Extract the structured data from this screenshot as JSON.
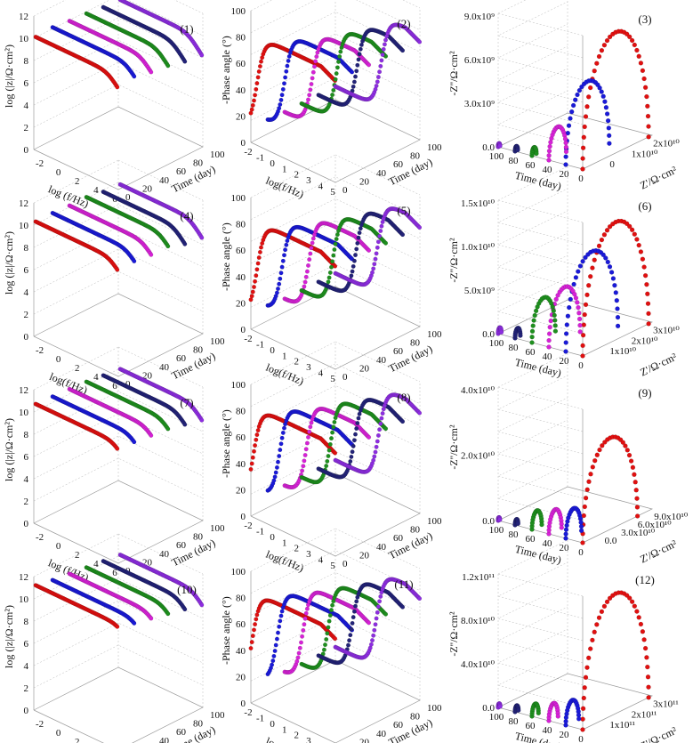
{
  "colors": {
    "day0": "#e01010",
    "day20": "#1a1ad8",
    "day40": "#d622d6",
    "day60": "#1e8f1e",
    "day80": "#232378",
    "day100": "#8d2de0"
  },
  "common": {
    "bode_z_xlabel": "log (f/Hz)",
    "bode_z_xlabel_alt": "log(f/Hz)",
    "bode_z_ylabel": "log (|z|/Ω·cm²)",
    "phase_xlabel": "log(f/Hz)",
    "phase_ylabel": "-Phase angle (°)",
    "time_label": "Time (day)",
    "nyq_ylabel": "-Z''/Ω·cm²",
    "nyq_xlabel": "Z'/Ω·cm²",
    "time_ticks": [
      "0",
      "20",
      "40",
      "60",
      "80",
      "100"
    ],
    "time_ticks_nyq": [
      "100",
      "80",
      "60",
      "40",
      "20",
      "0"
    ],
    "logf_ticks": [
      "-2",
      "0",
      "2",
      "4",
      "6"
    ],
    "logf_ticks_phase": [
      "-2",
      "-1",
      "0",
      "1",
      "2",
      "3",
      "4",
      "5"
    ],
    "z_ticks": [
      "0",
      "2",
      "4",
      "6",
      "8",
      "10",
      "12"
    ],
    "phase_ticks": [
      "0",
      "20",
      "40",
      "60",
      "80",
      "100"
    ]
  },
  "chart_data": [
    {
      "type": "line",
      "subtype": "bode-impedance-3d",
      "panel_label": "(1)",
      "x": "log(f/Hz)",
      "y": "Time (day)",
      "z": "log(|z|/Ω·cm²)",
      "xlim": [
        -3,
        6
      ],
      "zlim": [
        0,
        12
      ],
      "series": [
        {
          "name": "0",
          "low_freq_plateau": 10.2
        },
        {
          "name": "20",
          "low_freq_plateau": 10.3
        },
        {
          "name": "40",
          "low_freq_plateau": 10.1
        },
        {
          "name": "60",
          "low_freq_plateau": 10.0
        },
        {
          "name": "80",
          "low_freq_plateau": 9.8
        },
        {
          "name": "100",
          "low_freq_plateau": 9.7
        }
      ]
    },
    {
      "type": "line",
      "subtype": "bode-phase-3d",
      "panel_label": "(2)",
      "x": "log(f/Hz)",
      "y": "Time (day)",
      "z": "-Phase angle (°)",
      "xlim": [
        -2,
        5
      ],
      "zlim": [
        0,
        100
      ],
      "series": [
        {
          "name": "0",
          "max_phase": 83,
          "transition_logf": -1.5
        },
        {
          "name": "20",
          "max_phase": 83,
          "transition_logf": -0.6
        },
        {
          "name": "40",
          "max_phase": 82,
          "transition_logf": 0.3
        },
        {
          "name": "60",
          "max_phase": 82,
          "transition_logf": 0.9
        },
        {
          "name": "80",
          "max_phase": 80,
          "transition_logf": 1.2
        },
        {
          "name": "100",
          "max_phase": 80,
          "transition_logf": 1.8
        }
      ]
    },
    {
      "type": "scatter",
      "subtype": "nyquist-3d",
      "panel_label": "(3)",
      "x": "Z'/Ω·cm²",
      "y": "Time (day)",
      "z": "-Z''/Ω·cm²",
      "z_ticks": [
        "0.0",
        "3.0x10⁹",
        "6.0x10⁹",
        "9.0x10⁹"
      ],
      "x_ticks": [
        "0",
        "1x10¹⁰",
        "2x10¹⁰"
      ],
      "series": [
        {
          "name": "0",
          "max_neg_zimag": 8300000000.0
        },
        {
          "name": "20",
          "max_neg_zimag": 5000000000.0
        },
        {
          "name": "40",
          "max_neg_zimag": 2000000000.0
        },
        {
          "name": "60",
          "max_neg_zimag": 500000000.0
        },
        {
          "name": "80",
          "max_neg_zimag": 300000000.0
        },
        {
          "name": "100",
          "max_neg_zimag": 200000000.0
        }
      ]
    },
    {
      "type": "line",
      "subtype": "bode-impedance-3d",
      "panel_label": "(4)",
      "x": "log(f/Hz)",
      "y": "Time (day)",
      "z": "log(|z|/Ω·cm²)",
      "xlim": [
        -3,
        6
      ],
      "zlim": [
        0,
        12
      ],
      "series": [
        {
          "name": "0",
          "low_freq_plateau": 10.4
        },
        {
          "name": "20",
          "low_freq_plateau": 10.4
        },
        {
          "name": "40",
          "low_freq_plateau": 10.3
        },
        {
          "name": "60",
          "low_freq_plateau": 10.3
        },
        {
          "name": "80",
          "low_freq_plateau": 10.0
        },
        {
          "name": "100",
          "low_freq_plateau": 9.9
        }
      ]
    },
    {
      "type": "line",
      "subtype": "bode-phase-3d",
      "panel_label": "(5)",
      "x": "log(f/Hz)",
      "y": "Time (day)",
      "z": "-Phase angle (°)",
      "xlim": [
        -2,
        5
      ],
      "zlim": [
        0,
        100
      ],
      "series": [
        {
          "name": "0",
          "max_phase": 84,
          "transition_logf": -1.5
        },
        {
          "name": "20",
          "max_phase": 83,
          "transition_logf": -0.8
        },
        {
          "name": "40",
          "max_phase": 83,
          "transition_logf": 0.0
        },
        {
          "name": "60",
          "max_phase": 82,
          "transition_logf": 0.6
        },
        {
          "name": "80",
          "max_phase": 82,
          "transition_logf": 1.1
        },
        {
          "name": "100",
          "max_phase": 81,
          "transition_logf": 1.5
        }
      ]
    },
    {
      "type": "scatter",
      "subtype": "nyquist-3d",
      "panel_label": "(6)",
      "x": "Z'/Ω·cm²",
      "y": "Time (day)",
      "z": "-Z''/Ω·cm²",
      "z_ticks": [
        "0.0",
        "5.0x10⁹",
        "1.0x10¹⁰",
        "1.5x10¹⁰"
      ],
      "x_ticks": [
        "1x10¹⁰",
        "2x10¹⁰",
        "3x10¹⁰"
      ],
      "series": [
        {
          "name": "0",
          "max_neg_zimag": 13500000000.0
        },
        {
          "name": "20",
          "max_neg_zimag": 10000000000.0
        },
        {
          "name": "40",
          "max_neg_zimag": 6000000000.0
        },
        {
          "name": "60",
          "max_neg_zimag": 4500000000.0
        },
        {
          "name": "80",
          "max_neg_zimag": 1000000000.0
        },
        {
          "name": "100",
          "max_neg_zimag": 600000000.0
        }
      ]
    },
    {
      "type": "line",
      "subtype": "bode-impedance-3d",
      "panel_label": "(7)",
      "x": "log(f/Hz)",
      "y": "Time (day)",
      "z": "log(|z|/Ω·cm²)",
      "xlim": [
        -3,
        6
      ],
      "zlim": [
        0,
        12
      ],
      "series": [
        {
          "name": "0",
          "low_freq_plateau": 10.8
        },
        {
          "name": "20",
          "low_freq_plateau": 10.7
        },
        {
          "name": "40",
          "low_freq_plateau": 10.6
        },
        {
          "name": "60",
          "low_freq_plateau": 10.5
        },
        {
          "name": "80",
          "low_freq_plateau": 10.3
        },
        {
          "name": "100",
          "low_freq_plateau": 10.1
        }
      ]
    },
    {
      "type": "line",
      "subtype": "bode-phase-3d",
      "panel_label": "(8)",
      "x": "log(f/Hz)",
      "y": "Time (day)",
      "z": "-Phase angle (°)",
      "xlim": [
        -2,
        5
      ],
      "zlim": [
        0,
        100
      ],
      "series": [
        {
          "name": "0",
          "max_phase": 84,
          "transition_logf": -1.8
        },
        {
          "name": "20",
          "max_phase": 84,
          "transition_logf": -1.0
        },
        {
          "name": "40",
          "max_phase": 83,
          "transition_logf": -0.2
        },
        {
          "name": "60",
          "max_phase": 83,
          "transition_logf": 0.4
        },
        {
          "name": "80",
          "max_phase": 82,
          "transition_logf": 1.0
        },
        {
          "name": "100",
          "max_phase": 82,
          "transition_logf": 1.6
        }
      ]
    },
    {
      "type": "scatter",
      "subtype": "nyquist-3d",
      "panel_label": "(9)",
      "x": "Z'/Ω·cm²",
      "y": "Time (day)",
      "z": "-Z''/Ω·cm²",
      "z_ticks": [
        "0.0",
        "2.0x10¹⁰",
        "4.0x10¹⁰"
      ],
      "x_ticks": [
        "0.0",
        "3.0x10¹⁰",
        "6.0x10¹⁰",
        "9.0x10¹⁰"
      ],
      "series": [
        {
          "name": "0",
          "max_neg_zimag": 28000000000.0
        },
        {
          "name": "20",
          "max_neg_zimag": 8000000000.0
        },
        {
          "name": "40",
          "max_neg_zimag": 6500000000.0
        },
        {
          "name": "60",
          "max_neg_zimag": 5000000000.0
        },
        {
          "name": "80",
          "max_neg_zimag": 1500000000.0
        },
        {
          "name": "100",
          "max_neg_zimag": 800000000.0
        }
      ]
    },
    {
      "type": "line",
      "subtype": "bode-impedance-3d",
      "panel_label": "(10)",
      "x": "log(f/Hz)",
      "y": "Time (day)",
      "z": "log(|z|/Ω·cm²)",
      "xlim": [
        -3,
        6
      ],
      "zlim": [
        0,
        12
      ],
      "series": [
        {
          "name": "0",
          "low_freq_plateau": 11.3
        },
        {
          "name": "20",
          "low_freq_plateau": 11.0
        },
        {
          "name": "40",
          "low_freq_plateau": 10.8
        },
        {
          "name": "60",
          "low_freq_plateau": 10.6
        },
        {
          "name": "80",
          "low_freq_plateau": 10.4
        },
        {
          "name": "100",
          "low_freq_plateau": 10.2
        }
      ]
    },
    {
      "type": "line",
      "subtype": "bode-phase-3d",
      "panel_label": "(11)",
      "x": "log(f/Hz)",
      "y": "Time (day)",
      "z": "-Phase angle (°)",
      "xlim": [
        -2,
        5
      ],
      "zlim": [
        0,
        100
      ],
      "series": [
        {
          "name": "0",
          "max_phase": 85,
          "transition_logf": -1.9
        },
        {
          "name": "20",
          "max_phase": 85,
          "transition_logf": -1.2
        },
        {
          "name": "40",
          "max_phase": 84,
          "transition_logf": -0.5
        },
        {
          "name": "60",
          "max_phase": 84,
          "transition_logf": 0.2
        },
        {
          "name": "80",
          "max_phase": 83,
          "transition_logf": 0.8
        },
        {
          "name": "100",
          "max_phase": 83,
          "transition_logf": 1.4
        }
      ]
    },
    {
      "type": "scatter",
      "subtype": "nyquist-3d",
      "panel_label": "(12)",
      "x": "Z'/Ω·cm²",
      "y": "Time (day)",
      "z": "-Z''/Ω·cm²",
      "z_ticks": [
        "0.0",
        "4.0x10¹⁰",
        "8.0x10¹⁰",
        "1.2x10¹¹"
      ],
      "x_ticks": [
        "1x10¹¹",
        "2x10¹¹",
        "3x10¹¹"
      ],
      "series": [
        {
          "name": "0",
          "max_neg_zimag": 110000000000.0
        },
        {
          "name": "20",
          "max_neg_zimag": 20000000000.0
        },
        {
          "name": "40",
          "max_neg_zimag": 14000000000.0
        },
        {
          "name": "60",
          "max_neg_zimag": 10000000000.0
        },
        {
          "name": "80",
          "max_neg_zimag": 5000000000.0
        },
        {
          "name": "100",
          "max_neg_zimag": 3000000000.0
        }
      ]
    }
  ]
}
